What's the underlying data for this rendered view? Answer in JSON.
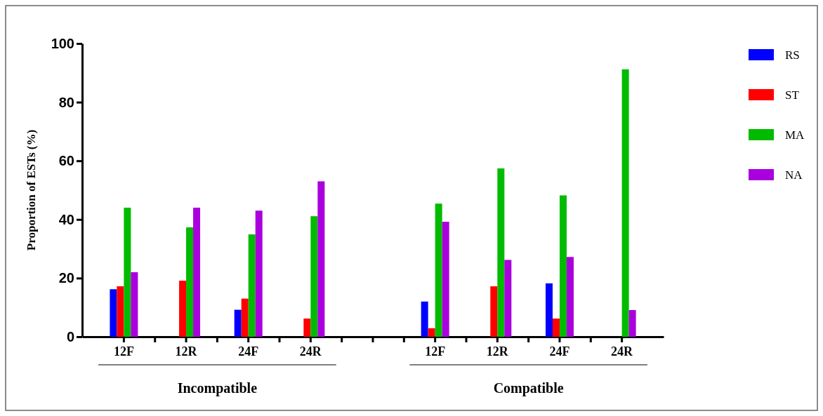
{
  "chart_data": {
    "type": "bar",
    "ylabel": "Proportion of ESTs (%)",
    "categories": [
      "12F",
      "12R",
      "24F",
      "24R",
      null,
      "12F",
      "12R",
      "24F",
      "24R"
    ],
    "series": [
      {
        "name": "RS",
        "color": "#0000ff",
        "values": [
          16.2,
          null,
          9.2,
          null,
          null,
          12,
          null,
          18.2,
          null
        ]
      },
      {
        "name": "ST",
        "color": "#ff0000",
        "values": [
          17.2,
          19.1,
          13,
          6.2,
          null,
          2.9,
          17.2,
          6.2,
          null
        ]
      },
      {
        "name": "MA",
        "color": "#00bb00",
        "values": [
          44,
          37.3,
          34.9,
          41.1,
          null,
          45.4,
          57.4,
          48.2,
          91.2
        ]
      },
      {
        "name": "NA",
        "color": "#aa00dd",
        "values": [
          22,
          44,
          43,
          53,
          null,
          39.2,
          26.2,
          27.2,
          9.1
        ]
      }
    ],
    "ylim": [
      0,
      100
    ],
    "yticks": [
      0,
      20,
      40,
      60,
      80,
      100
    ],
    "annotations": [
      "Incompatible",
      "Compatible"
    ],
    "legend": "top right"
  }
}
